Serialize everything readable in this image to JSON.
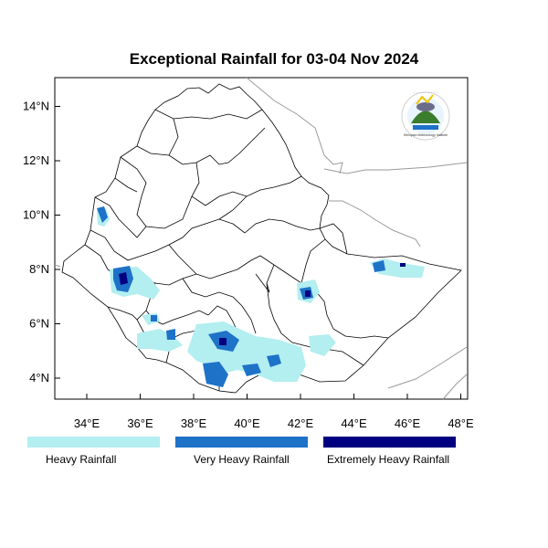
{
  "map": {
    "title": "Exceptional Rainfall for 03-04 Nov 2024",
    "lat_ticks": [
      "14°N",
      "12°N",
      "10°N",
      "8°N",
      "6°N",
      "4°N"
    ],
    "lon_ticks": [
      "34°E",
      "36°E",
      "38°E",
      "40°E",
      "42°E",
      "44°E",
      "46°E",
      "48°E"
    ],
    "lat_range": [
      3.2,
      14.9
    ],
    "lon_range": [
      33,
      48.2
    ]
  },
  "legend": {
    "items": [
      {
        "label": "Heavy Rainfall",
        "color": "#b3eef0"
      },
      {
        "label": "Very Heavy Rainfall",
        "color": "#1e72c8"
      },
      {
        "label": "Extremely Heavy Rainfall",
        "color": "#000080"
      }
    ]
  },
  "colors": {
    "heavy": "#b3eef0",
    "very_heavy": "#1e72c8",
    "extremely_heavy": "#000080",
    "boundary": "#000000",
    "neighbor_boundary": "#9a9a9a"
  },
  "logo": {
    "name": "ethiopian-meteorology-institute-logo",
    "lettering": "Ethiopian Meteorology Institute"
  }
}
